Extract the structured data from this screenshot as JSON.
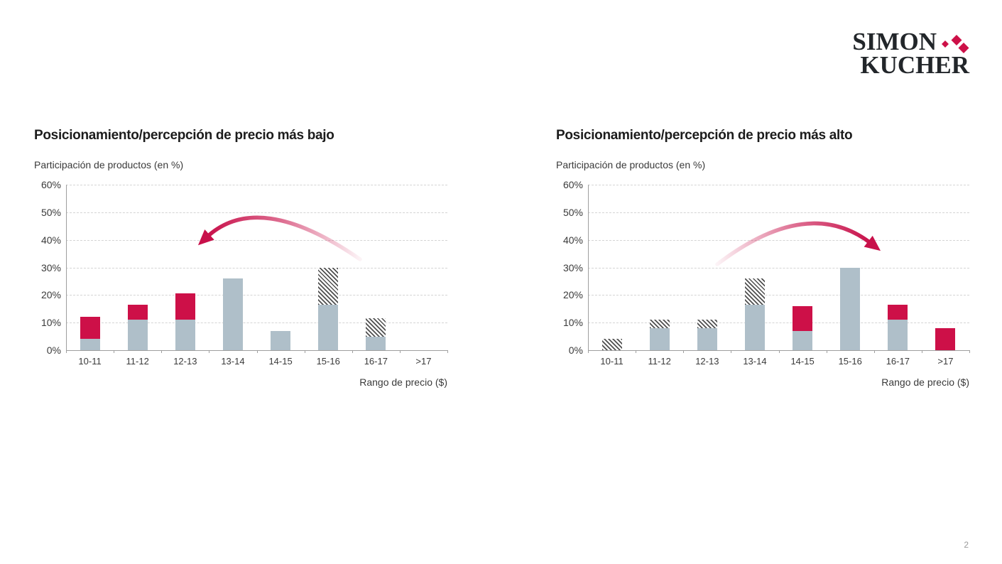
{
  "page": {
    "page_number": "2",
    "background": "#ffffff"
  },
  "logo": {
    "word1": "SIMON",
    "word2": "KUCHER",
    "icon": "three-diamond-cluster",
    "text_color": "#22262A",
    "diamond_color": "#CD1048"
  },
  "colors": {
    "bar_gray": "#AFBFC9",
    "bar_red": "#CD1048",
    "hatch_stripe": "#4F4F4F",
    "grid": "#D4D4D4",
    "axis": "#9E9E9E",
    "title_text": "#1C1C1C",
    "body_text": "#3A3A3A",
    "pagenum_text": "#9A9A9A",
    "arrow": "#C8104A"
  },
  "chart_data": [
    {
      "type": "bar",
      "stacked": true,
      "title": "Posicionamiento/percepción de precio más bajo",
      "ylabel": "Participación de productos (en %)",
      "xlabel": "Rango de precio ($)",
      "categories": [
        "10-11",
        "11-12",
        "12-13",
        "13-14",
        "14-15",
        "15-16",
        "16-17",
        ">17"
      ],
      "series": [
        {
          "name": "gris-solido",
          "style": "solid_gray",
          "values": [
            4,
            11,
            11,
            26,
            7,
            16.5,
            5,
            0
          ]
        },
        {
          "name": "rojo-solido",
          "style": "solid_red",
          "values": [
            8,
            5.5,
            9.5,
            0,
            0,
            0,
            0,
            0
          ]
        },
        {
          "name": "rayado",
          "style": "hatched",
          "values": [
            0,
            0,
            0,
            0,
            0,
            13.5,
            6.5,
            0
          ]
        }
      ],
      "totals": [
        12,
        16.5,
        20.5,
        26,
        7,
        30,
        11.5,
        0
      ],
      "ylim": [
        0,
        60
      ],
      "yticks": [
        "0%",
        "10%",
        "20%",
        "30%",
        "40%",
        "50%",
        "60%"
      ],
      "grid": "dashed-horizontal",
      "legend": "none",
      "annotation_arrow": {
        "direction": "left"
      }
    },
    {
      "type": "bar",
      "stacked": true,
      "title": "Posicionamiento/percepción de precio más alto",
      "ylabel": "Participación de productos (en %)",
      "xlabel": "Rango de precio ($)",
      "categories": [
        "10-11",
        "11-12",
        "12-13",
        "13-14",
        "14-15",
        "15-16",
        "16-17",
        ">17"
      ],
      "series": [
        {
          "name": "gris-solido",
          "style": "solid_gray",
          "values": [
            0,
            8,
            8,
            16.5,
            7,
            30,
            11,
            0
          ]
        },
        {
          "name": "rojo-solido",
          "style": "solid_red",
          "values": [
            0,
            0,
            0,
            0,
            9,
            0,
            5.5,
            8
          ]
        },
        {
          "name": "rayado",
          "style": "hatched",
          "values": [
            4,
            3,
            3,
            9.5,
            0,
            0,
            0,
            0
          ]
        }
      ],
      "totals": [
        4,
        11,
        11,
        26,
        16,
        30,
        16.5,
        8
      ],
      "ylim": [
        0,
        60
      ],
      "yticks": [
        "0%",
        "10%",
        "20%",
        "30%",
        "40%",
        "50%",
        "60%"
      ],
      "grid": "dashed-horizontal",
      "legend": "none",
      "annotation_arrow": {
        "direction": "right"
      }
    }
  ]
}
